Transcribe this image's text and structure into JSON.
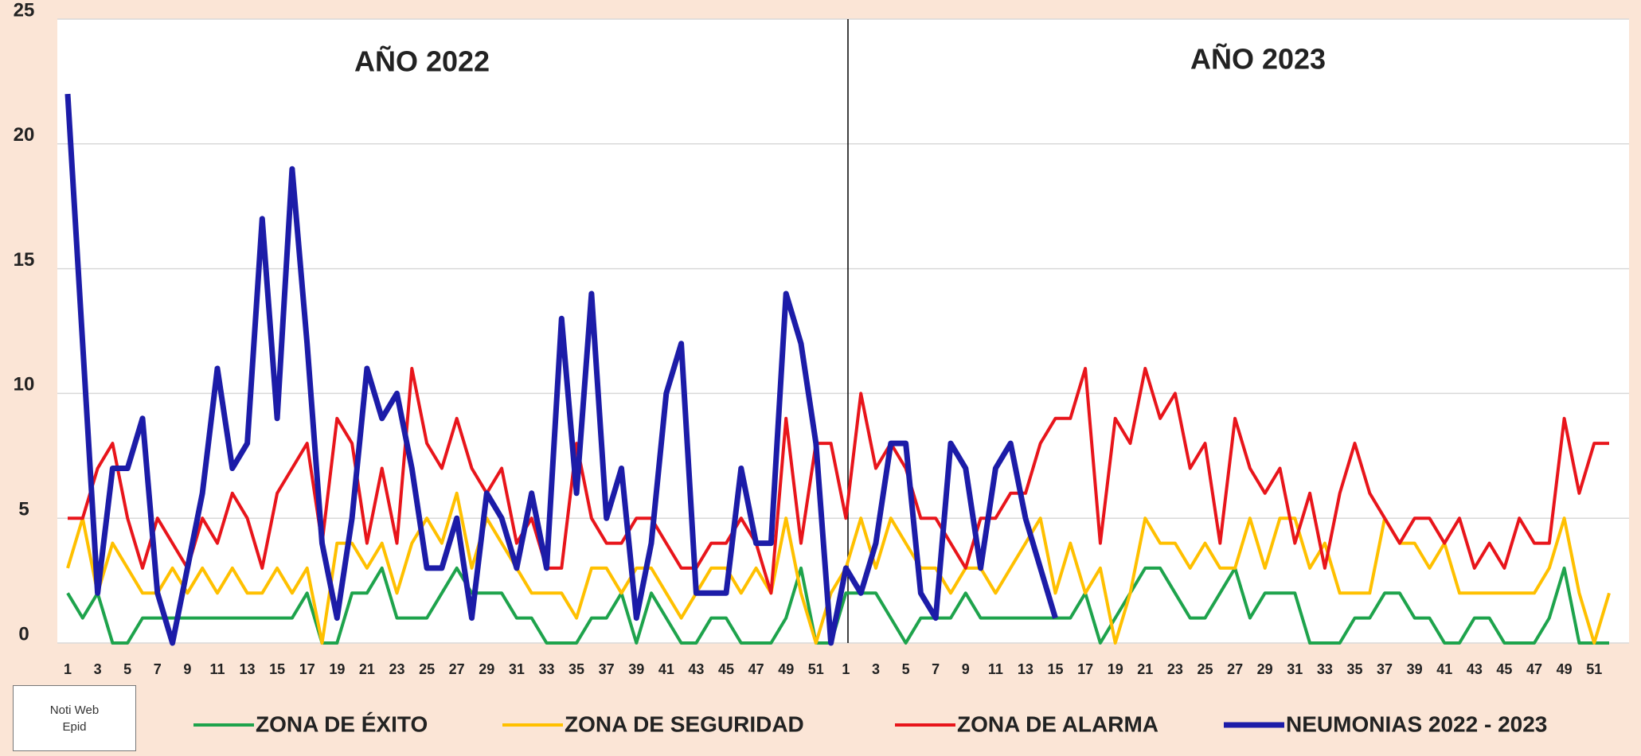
{
  "chart_data": {
    "type": "line",
    "annotations": [
      "AÑO 2022",
      "AÑO 2023"
    ],
    "source_note": "Noti Web Epid",
    "categories": [
      1,
      null,
      3,
      null,
      5,
      null,
      7,
      null,
      9,
      null,
      11,
      null,
      13,
      null,
      15,
      null,
      17,
      null,
      19,
      null,
      21,
      null,
      23,
      null,
      25,
      null,
      27,
      null,
      29,
      null,
      31,
      null,
      33,
      null,
      35,
      null,
      37,
      null,
      39,
      null,
      41,
      null,
      43,
      null,
      45,
      null,
      47,
      null,
      49,
      null,
      51,
      null,
      1,
      null,
      3,
      null,
      5,
      null,
      7,
      null,
      9,
      null,
      11,
      null,
      13,
      null,
      15,
      null,
      17,
      null,
      19,
      null,
      21,
      null,
      23,
      null,
      25,
      null,
      27,
      null,
      29,
      null,
      31,
      null,
      33,
      null,
      35,
      null,
      37,
      null,
      39,
      null,
      41,
      null,
      43,
      null,
      45,
      null,
      47,
      null,
      49,
      null,
      51,
      null
    ],
    "series": [
      {
        "name": "ZONA DE ÉXITO",
        "color": "#1ea34c",
        "width": 4,
        "values": [
          2,
          1,
          2,
          0,
          0,
          1,
          1,
          1,
          1,
          1,
          1,
          1,
          1,
          1,
          1,
          1,
          2,
          0,
          0,
          2,
          2,
          3,
          1,
          1,
          1,
          2,
          3,
          2,
          2,
          2,
          1,
          1,
          0,
          0,
          0,
          1,
          1,
          2,
          0,
          2,
          1,
          0,
          0,
          1,
          1,
          0,
          0,
          0,
          1,
          3,
          0,
          0,
          2,
          2,
          2,
          1,
          0,
          1,
          1,
          1,
          2,
          1,
          1,
          1,
          1,
          1,
          1,
          1,
          2,
          0,
          1,
          2,
          3,
          3,
          2,
          1,
          1,
          2,
          3,
          1,
          2,
          2,
          2,
          0,
          0,
          0,
          1,
          1,
          2,
          2,
          1,
          1,
          0,
          0,
          1,
          1,
          0,
          0,
          0,
          1,
          3,
          0,
          0,
          0
        ]
      },
      {
        "name": "ZONA DE SEGURIDAD",
        "color": "#ffc000",
        "width": 4,
        "values": [
          3,
          5,
          2,
          4,
          3,
          2,
          2,
          3,
          2,
          3,
          2,
          3,
          2,
          2,
          3,
          2,
          3,
          0,
          4,
          4,
          3,
          4,
          2,
          4,
          5,
          4,
          6,
          3,
          5,
          4,
          3,
          2,
          2,
          2,
          1,
          3,
          3,
          2,
          3,
          3,
          2,
          1,
          2,
          3,
          3,
          2,
          3,
          2,
          5,
          2,
          0,
          2,
          3,
          5,
          3,
          5,
          4,
          3,
          3,
          2,
          3,
          3,
          2,
          3,
          4,
          5,
          2,
          4,
          2,
          3,
          0,
          2,
          5,
          4,
          4,
          3,
          4,
          3,
          3,
          5,
          3,
          5,
          5,
          3,
          4,
          2,
          2,
          2,
          5,
          4,
          4,
          3,
          4,
          2,
          2,
          2,
          2,
          2,
          2,
          3,
          5,
          2,
          0,
          2
        ]
      },
      {
        "name": "ZONA DE ALARMA",
        "color": "#e8151b",
        "width": 4,
        "values": [
          5,
          5,
          7,
          8,
          5,
          3,
          5,
          4,
          3,
          5,
          4,
          6,
          5,
          3,
          6,
          7,
          8,
          4,
          9,
          8,
          4,
          7,
          4,
          11,
          8,
          7,
          9,
          7,
          6,
          7,
          4,
          5,
          3,
          3,
          8,
          5,
          4,
          4,
          5,
          5,
          4,
          3,
          3,
          4,
          4,
          5,
          4,
          2,
          9,
          4,
          8,
          8,
          5,
          10,
          7,
          8,
          7,
          5,
          5,
          4,
          3,
          5,
          5,
          6,
          6,
          8,
          9,
          9,
          11,
          4,
          9,
          8,
          11,
          9,
          10,
          7,
          8,
          4,
          9,
          7,
          6,
          7,
          4,
          6,
          3,
          6,
          8,
          6,
          5,
          4,
          5,
          5,
          4,
          5,
          3,
          4,
          3,
          5,
          4,
          4,
          9,
          6,
          8,
          8
        ]
      },
      {
        "name": "NEUMONIAS 2022 - 2023",
        "color": "#1c1ca8",
        "width": 7,
        "values": [
          22,
          12,
          2,
          7,
          7,
          9,
          2,
          0,
          3,
          6,
          11,
          7,
          8,
          17,
          9,
          19,
          12,
          4,
          1,
          5,
          11,
          9,
          10,
          7,
          3,
          3,
          5,
          1,
          6,
          5,
          3,
          6,
          3,
          13,
          6,
          14,
          5,
          7,
          1,
          4,
          10,
          12,
          2,
          2,
          2,
          7,
          4,
          4,
          14,
          12,
          8,
          0,
          3,
          2,
          4,
          8,
          8,
          2,
          1,
          8,
          7,
          3,
          7,
          8,
          5,
          3,
          1,
          null,
          null,
          null,
          null,
          null,
          null,
          null,
          null,
          null,
          null,
          null,
          null,
          null,
          null,
          null,
          null,
          null,
          null,
          null,
          null,
          null,
          null,
          null,
          null,
          null,
          null,
          null,
          null,
          null,
          null,
          null,
          null,
          null,
          null,
          null,
          null,
          null
        ]
      }
    ],
    "ylim": [
      0,
      25
    ],
    "yticks": [
      0,
      5,
      10,
      15,
      20,
      25
    ],
    "grid": true,
    "legend": "bottom"
  }
}
